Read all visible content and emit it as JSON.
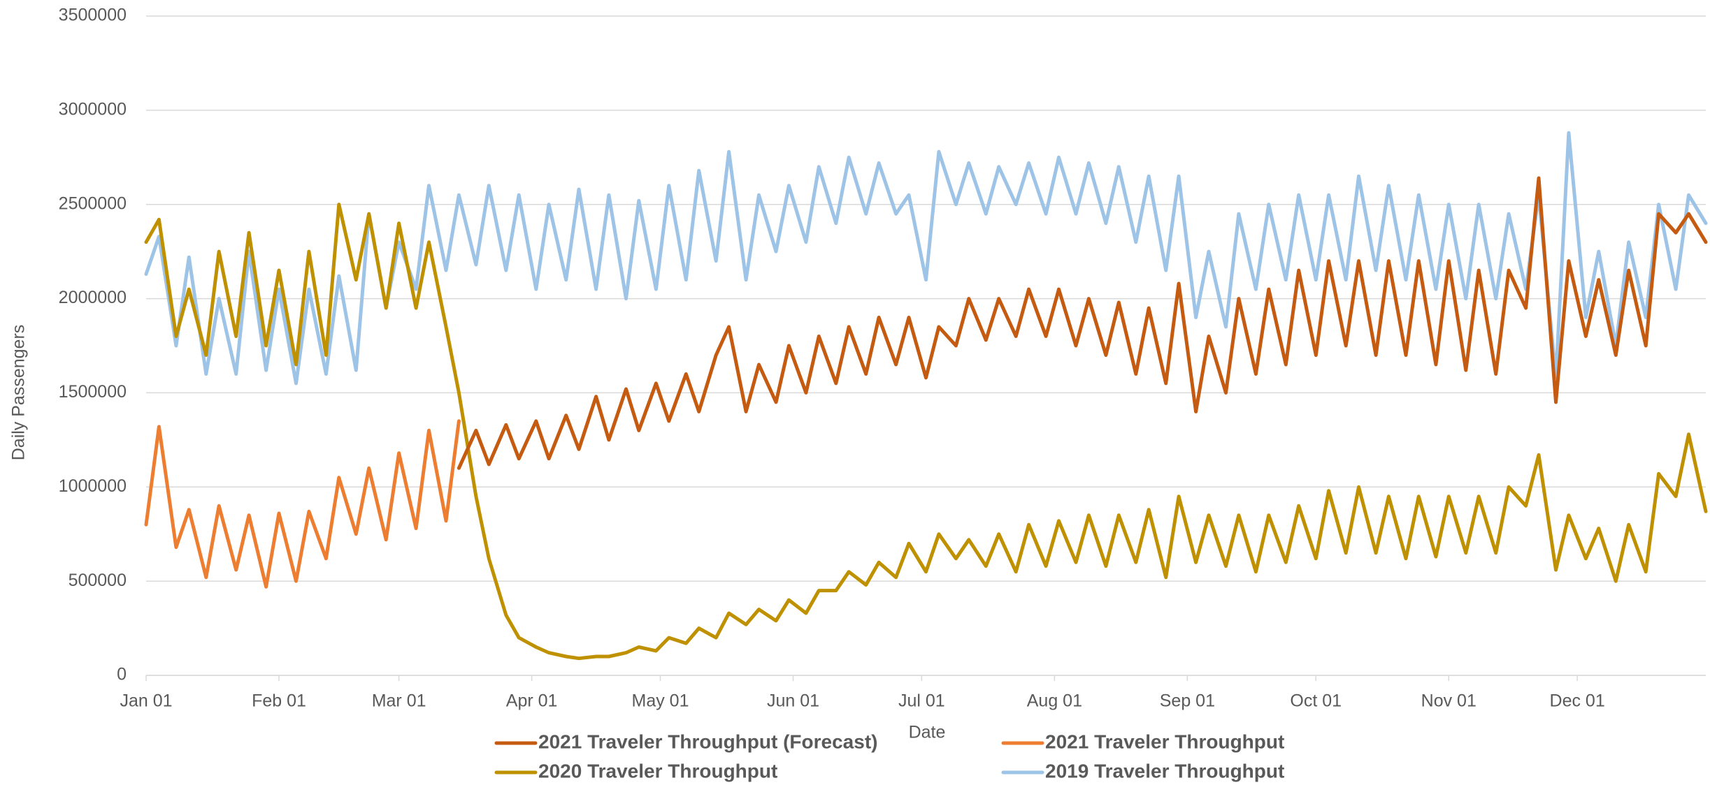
{
  "chart_data": {
    "type": "line",
    "xlabel": "Date",
    "ylabel": "Daily Passengers",
    "x": [
      0,
      3,
      7,
      10,
      14,
      17,
      21,
      24,
      28,
      31,
      35,
      38,
      42,
      45,
      49,
      52,
      56,
      59,
      63,
      66,
      70,
      73,
      77,
      80,
      84,
      87,
      91,
      94,
      98,
      101,
      105,
      108,
      112,
      115,
      119,
      122,
      126,
      129,
      133,
      136,
      140,
      143,
      147,
      150,
      154,
      157,
      161,
      164,
      168,
      171,
      175,
      178,
      182,
      185,
      189,
      192,
      196,
      199,
      203,
      206,
      210,
      213,
      217,
      220,
      224,
      227,
      231,
      234,
      238,
      241,
      245,
      248,
      252,
      255,
      259,
      262,
      266,
      269,
      273,
      276,
      280,
      283,
      287,
      290,
      294,
      297,
      301,
      304,
      308,
      311,
      315,
      318,
      322,
      325,
      329,
      332,
      336,
      339,
      343,
      346,
      350,
      353,
      357,
      360,
      364
    ],
    "xlim": [
      0,
      364
    ],
    "xticks": [
      {
        "value": 0,
        "label": "Jan 01"
      },
      {
        "value": 31,
        "label": "Feb 01"
      },
      {
        "value": 59,
        "label": "Mar 01"
      },
      {
        "value": 90,
        "label": "Apr 01"
      },
      {
        "value": 120,
        "label": "May 01"
      },
      {
        "value": 151,
        "label": "Jun 01"
      },
      {
        "value": 181,
        "label": "Jul 01"
      },
      {
        "value": 212,
        "label": "Aug 01"
      },
      {
        "value": 243,
        "label": "Sep 01"
      },
      {
        "value": 273,
        "label": "Oct 01"
      },
      {
        "value": 304,
        "label": "Nov 01"
      },
      {
        "value": 334,
        "label": "Dec 01"
      }
    ],
    "ylim": [
      0,
      3500000
    ],
    "yticks": [
      0,
      500000,
      1000000,
      1500000,
      2000000,
      2500000,
      3000000,
      3500000
    ],
    "grid": true,
    "legend": "bottom",
    "series": [
      {
        "name": "2021 Traveler Throughput (Forecast)",
        "color": "#c55a11",
        "values": [
          null,
          null,
          null,
          null,
          null,
          null,
          null,
          null,
          null,
          null,
          null,
          null,
          null,
          null,
          null,
          null,
          null,
          null,
          null,
          null,
          null,
          1100000,
          1300000,
          1120000,
          1330000,
          1150000,
          1350000,
          1150000,
          1380000,
          1200000,
          1480000,
          1250000,
          1520000,
          1300000,
          1550000,
          1350000,
          1600000,
          1400000,
          1700000,
          1850000,
          1400000,
          1650000,
          1450000,
          1750000,
          1500000,
          1800000,
          1550000,
          1850000,
          1600000,
          1900000,
          1650000,
          1900000,
          1580000,
          1850000,
          1750000,
          2000000,
          1780000,
          2000000,
          1800000,
          2050000,
          1800000,
          2050000,
          1750000,
          2000000,
          1700000,
          1980000,
          1600000,
          1950000,
          1550000,
          2080000,
          1400000,
          1800000,
          1500000,
          2000000,
          1600000,
          2050000,
          1650000,
          2150000,
          1700000,
          2200000,
          1750000,
          2200000,
          1700000,
          2200000,
          1700000,
          2200000,
          1650000,
          2200000,
          1620000,
          2150000,
          1600000,
          2150000,
          1950000,
          2640000,
          1450000,
          2200000,
          1800000,
          2100000,
          1700000,
          2150000,
          1750000,
          2450000,
          2350000,
          2450000,
          2300000
        ]
      },
      {
        "name": "2021 Traveler Throughput",
        "color": "#ed7d31",
        "values": [
          800000,
          1320000,
          680000,
          880000,
          520000,
          900000,
          560000,
          850000,
          470000,
          860000,
          500000,
          870000,
          620000,
          1050000,
          750000,
          1100000,
          720000,
          1180000,
          780000,
          1300000,
          820000,
          1350000,
          null,
          null,
          null,
          null,
          null,
          null,
          null,
          null,
          null,
          null,
          null,
          null,
          null,
          null,
          null,
          null,
          null,
          null,
          null,
          null,
          null,
          null,
          null,
          null,
          null,
          null,
          null,
          null,
          null,
          null,
          null,
          null,
          null,
          null,
          null,
          null,
          null,
          null,
          null,
          null,
          null,
          null,
          null,
          null,
          null,
          null,
          null,
          null,
          null,
          null,
          null,
          null,
          null,
          null,
          null,
          null,
          null,
          null,
          null,
          null,
          null,
          null,
          null,
          null,
          null,
          null,
          null,
          null,
          null,
          null,
          null,
          null,
          null,
          null,
          null,
          null,
          null,
          null,
          null,
          null,
          null,
          null,
          null
        ]
      },
      {
        "name": "2020 Traveler Throughput",
        "color": "#bf9000",
        "values": [
          2300000,
          2420000,
          1800000,
          2050000,
          1700000,
          2250000,
          1800000,
          2350000,
          1750000,
          2150000,
          1650000,
          2250000,
          1700000,
          2500000,
          2100000,
          2450000,
          1950000,
          2400000,
          1950000,
          2300000,
          1850000,
          1500000,
          950000,
          620000,
          320000,
          200000,
          150000,
          120000,
          100000,
          90000,
          100000,
          100000,
          120000,
          150000,
          130000,
          200000,
          170000,
          250000,
          200000,
          330000,
          270000,
          350000,
          290000,
          400000,
          330000,
          450000,
          450000,
          550000,
          480000,
          600000,
          520000,
          700000,
          550000,
          750000,
          620000,
          720000,
          580000,
          750000,
          550000,
          800000,
          580000,
          820000,
          600000,
          850000,
          580000,
          850000,
          600000,
          880000,
          520000,
          950000,
          600000,
          850000,
          580000,
          850000,
          550000,
          850000,
          600000,
          900000,
          620000,
          980000,
          650000,
          1000000,
          650000,
          950000,
          620000,
          950000,
          630000,
          950000,
          650000,
          950000,
          650000,
          1000000,
          900000,
          1170000,
          560000,
          850000,
          620000,
          780000,
          500000,
          800000,
          550000,
          1070000,
          950000,
          1280000,
          870000
        ]
      },
      {
        "name": "2019 Traveler Throughput",
        "color": "#9dc3e6",
        "values": [
          2130000,
          2330000,
          1750000,
          2220000,
          1600000,
          2000000,
          1600000,
          2250000,
          1620000,
          2050000,
          1550000,
          2050000,
          1600000,
          2120000,
          1620000,
          2450000,
          1950000,
          2300000,
          2050000,
          2600000,
          2150000,
          2550000,
          2180000,
          2600000,
          2150000,
          2550000,
          2050000,
          2500000,
          2100000,
          2580000,
          2050000,
          2550000,
          2000000,
          2520000,
          2050000,
          2600000,
          2100000,
          2680000,
          2200000,
          2780000,
          2100000,
          2550000,
          2250000,
          2600000,
          2300000,
          2700000,
          2400000,
          2750000,
          2450000,
          2720000,
          2450000,
          2550000,
          2100000,
          2780000,
          2500000,
          2720000,
          2450000,
          2700000,
          2500000,
          2720000,
          2450000,
          2750000,
          2450000,
          2720000,
          2400000,
          2700000,
          2300000,
          2650000,
          2150000,
          2650000,
          1900000,
          2250000,
          1850000,
          2450000,
          2050000,
          2500000,
          2100000,
          2550000,
          2100000,
          2550000,
          2100000,
          2650000,
          2150000,
          2600000,
          2100000,
          2550000,
          2050000,
          2500000,
          2000000,
          2500000,
          2000000,
          2450000,
          2050000,
          2550000,
          1580000,
          2880000,
          1900000,
          2250000,
          1750000,
          2300000,
          1900000,
          2500000,
          2050000,
          2550000,
          2400000
        ]
      }
    ]
  }
}
